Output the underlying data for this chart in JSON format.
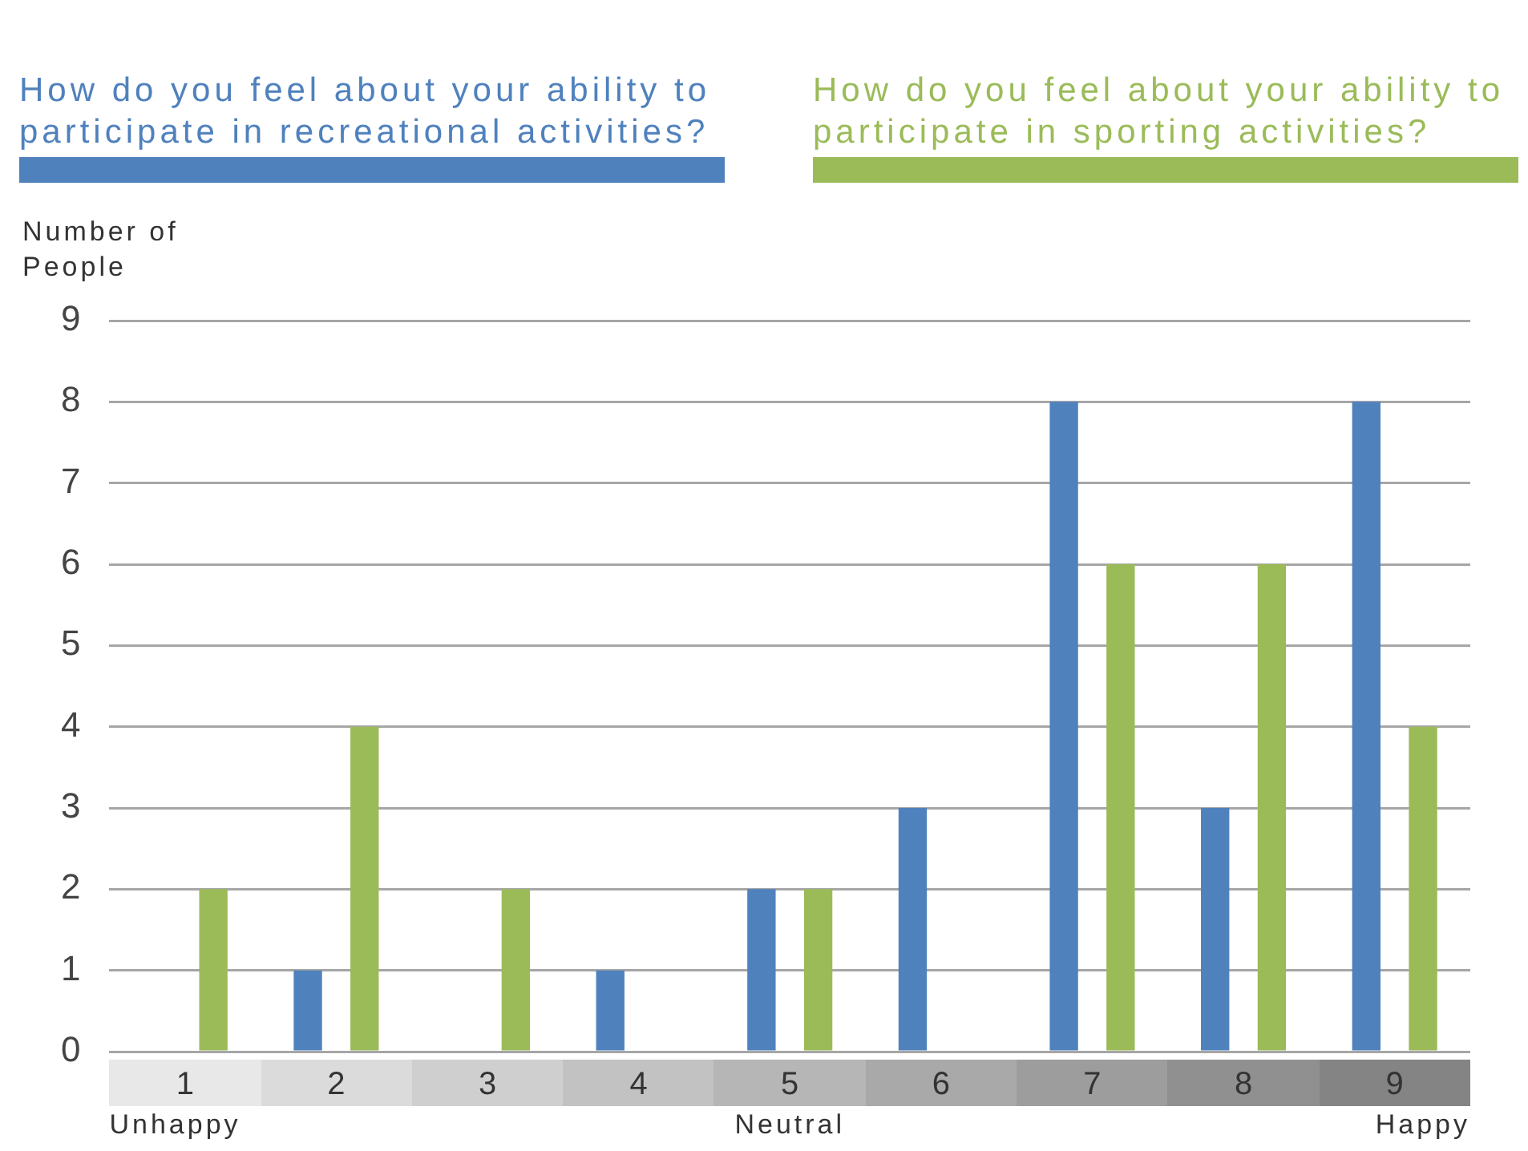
{
  "chart_data": {
    "type": "bar",
    "ylabel": "Number of People",
    "categories": [
      "1",
      "2",
      "3",
      "4",
      "5",
      "6",
      "7",
      "8",
      "9"
    ],
    "series": [
      {
        "name": "How do you feel about your ability to participate in recreational activities?",
        "color": "#4f81bd",
        "values": [
          0,
          1,
          0,
          1,
          2,
          3,
          8,
          3,
          8
        ]
      },
      {
        "name": "How do you feel about your ability to participate in sporting activities?",
        "color": "#9bbb59",
        "values": [
          2,
          4,
          2,
          0,
          2,
          0,
          6,
          6,
          4
        ]
      }
    ],
    "ylim": [
      0,
      9
    ],
    "yticks": [
      0,
      1,
      2,
      3,
      4,
      5,
      6,
      7,
      8,
      9
    ],
    "grid": "y",
    "legend": "top",
    "annotations": [
      "Unhappy",
      "Neutral",
      "Happy"
    ]
  }
}
